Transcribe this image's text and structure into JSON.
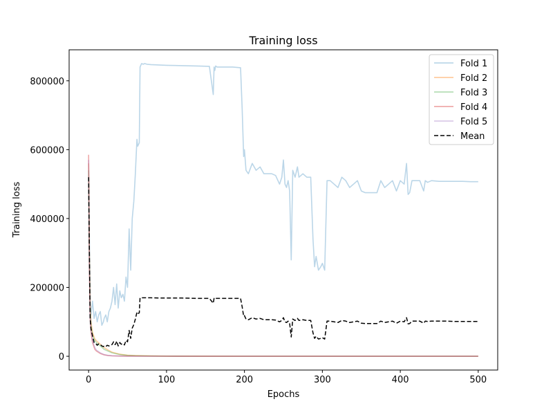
{
  "chart_data": {
    "type": "line",
    "title": "Training loss",
    "xlabel": "Epochs",
    "ylabel": "Training loss",
    "xlim": [
      -25,
      525
    ],
    "ylim": [
      -40000,
      890000
    ],
    "xticks": [
      0,
      100,
      200,
      300,
      400,
      500
    ],
    "yticks": [
      0,
      200000,
      400000,
      600000,
      800000
    ],
    "grid": false,
    "legend_position": "top-right",
    "series": [
      {
        "name": "Fold 1",
        "color": "#1f77b4",
        "alpha": 0.3,
        "dash": "solid",
        "x": [
          0,
          1,
          2,
          3,
          5,
          7,
          9,
          11,
          13,
          15,
          17,
          19,
          20,
          22,
          24,
          26,
          28,
          30,
          32,
          34,
          35,
          36,
          38,
          40,
          42,
          44,
          46,
          48,
          50,
          52,
          54,
          56,
          58,
          60,
          62,
          63,
          65,
          66,
          68,
          70,
          72,
          75,
          80,
          90,
          100,
          120,
          140,
          155,
          160,
          161,
          162,
          163,
          165,
          175,
          185,
          195,
          197,
          199,
          200,
          202,
          205,
          210,
          215,
          220,
          225,
          230,
          235,
          240,
          245,
          248,
          250,
          252,
          254,
          256,
          258,
          260,
          262,
          265,
          268,
          270,
          275,
          280,
          285,
          288,
          290,
          292,
          295,
          298,
          300,
          303,
          306,
          310,
          315,
          320,
          325,
          330,
          335,
          340,
          345,
          350,
          355,
          360,
          365,
          370,
          375,
          380,
          385,
          390,
          395,
          400,
          405,
          408,
          410,
          412,
          415,
          420,
          425,
          430,
          432,
          435,
          440,
          445,
          450,
          460,
          470,
          480,
          490,
          500
        ],
        "y": [
          520000,
          350000,
          150000,
          120000,
          160000,
          110000,
          130000,
          100000,
          120000,
          130000,
          90000,
          100000,
          110000,
          120000,
          100000,
          130000,
          140000,
          160000,
          200000,
          150000,
          180000,
          210000,
          140000,
          190000,
          170000,
          180000,
          160000,
          230000,
          200000,
          370000,
          250000,
          400000,
          450000,
          530000,
          630000,
          610000,
          620000,
          840000,
          850000,
          848000,
          850000,
          848000,
          847000,
          846000,
          845000,
          844000,
          843000,
          842000,
          760000,
          840000,
          830000,
          843000,
          840000,
          840000,
          840000,
          838000,
          720000,
          580000,
          600000,
          540000,
          530000,
          560000,
          540000,
          550000,
          530000,
          530000,
          530000,
          525000,
          500000,
          520000,
          570000,
          500000,
          490000,
          510000,
          480000,
          280000,
          540000,
          520000,
          550000,
          520000,
          530000,
          520000,
          520000,
          340000,
          260000,
          290000,
          250000,
          260000,
          270000,
          250000,
          510000,
          510000,
          500000,
          490000,
          520000,
          510000,
          490000,
          500000,
          510000,
          480000,
          475000,
          475000,
          475000,
          475000,
          510000,
          490000,
          500000,
          510000,
          480000,
          510000,
          500000,
          560000,
          470000,
          475000,
          510000,
          510000,
          510000,
          480000,
          510000,
          505000,
          510000,
          509000,
          508000,
          508000,
          508000,
          508000,
          507000,
          507000
        ]
      },
      {
        "name": "Fold 2",
        "color": "#ff7f0e",
        "alpha": 0.4,
        "dash": "solid",
        "x": [
          0,
          1,
          2,
          3,
          5,
          8,
          10,
          15,
          20,
          25,
          30,
          40,
          50,
          60,
          80,
          100,
          150,
          200,
          300,
          400,
          500
        ],
        "y": [
          560000,
          300000,
          150000,
          100000,
          70000,
          50000,
          45000,
          35000,
          25000,
          18000,
          12000,
          6000,
          3000,
          2000,
          1000,
          500,
          300,
          200,
          150,
          100,
          100
        ]
      },
      {
        "name": "Fold 3",
        "color": "#2ca02c",
        "alpha": 0.35,
        "dash": "solid",
        "x": [
          0,
          1,
          2,
          3,
          5,
          8,
          10,
          15,
          20,
          25,
          30,
          40,
          50,
          60,
          80,
          100,
          150,
          200,
          300,
          400,
          500
        ],
        "y": [
          540000,
          280000,
          140000,
          90000,
          60000,
          45000,
          40000,
          30000,
          20000,
          15000,
          10000,
          5000,
          2500,
          1500,
          800,
          400,
          250,
          150,
          100,
          100,
          100
        ]
      },
      {
        "name": "Fold 4",
        "color": "#d62728",
        "alpha": 0.4,
        "dash": "solid",
        "x": [
          0,
          1,
          2,
          3,
          5,
          8,
          10,
          15,
          20,
          25,
          30,
          40,
          50,
          60,
          80,
          100,
          150,
          200,
          300,
          400,
          500
        ],
        "y": [
          585000,
          250000,
          110000,
          70000,
          40000,
          20000,
          15000,
          8000,
          4000,
          2000,
          1200,
          600,
          300,
          200,
          100,
          80,
          60,
          50,
          50,
          50,
          50
        ]
      },
      {
        "name": "Fold 5",
        "color": "#9467bd",
        "alpha": 0.35,
        "dash": "solid",
        "x": [
          0,
          1,
          2,
          3,
          5,
          8,
          10,
          15,
          20,
          25,
          30,
          40,
          50,
          60,
          80,
          100,
          150,
          200,
          300,
          400,
          500
        ],
        "y": [
          570000,
          260000,
          120000,
          80000,
          45000,
          25000,
          18000,
          10000,
          5000,
          2500,
          1500,
          700,
          350,
          200,
          100,
          80,
          60,
          50,
          50,
          50,
          50
        ]
      },
      {
        "name": "Mean",
        "color": "#000000",
        "alpha": 1,
        "dash": "dashed",
        "x": [
          0,
          1,
          2,
          3,
          5,
          7,
          9,
          11,
          13,
          15,
          17,
          19,
          20,
          22,
          24,
          26,
          28,
          30,
          32,
          34,
          35,
          36,
          38,
          40,
          42,
          44,
          46,
          48,
          50,
          52,
          54,
          56,
          58,
          60,
          62,
          63,
          65,
          66,
          68,
          70,
          72,
          75,
          80,
          90,
          100,
          120,
          140,
          155,
          160,
          161,
          162,
          163,
          165,
          175,
          185,
          195,
          197,
          199,
          200,
          202,
          205,
          210,
          215,
          220,
          225,
          230,
          235,
          240,
          245,
          248,
          250,
          252,
          254,
          256,
          258,
          260,
          262,
          265,
          268,
          270,
          275,
          280,
          285,
          288,
          290,
          292,
          295,
          298,
          300,
          303,
          306,
          310,
          315,
          320,
          325,
          330,
          335,
          340,
          345,
          350,
          355,
          360,
          365,
          370,
          375,
          380,
          385,
          390,
          395,
          400,
          405,
          408,
          410,
          412,
          415,
          420,
          425,
          430,
          432,
          435,
          440,
          445,
          450,
          460,
          470,
          480,
          490,
          500
        ],
        "y": [
          520000,
          300000,
          110000,
          80000,
          60000,
          40000,
          38000,
          32000,
          36000,
          34000,
          30000,
          28000,
          30000,
          28000,
          32000,
          30000,
          32000,
          34000,
          42000,
          34000,
          37000,
          44000,
          30000,
          40000,
          35000,
          37000,
          33000,
          46000,
          42000,
          75000,
          52000,
          82000,
          92000,
          108000,
          128000,
          124000,
          126000,
          170000,
          170000,
          170000,
          170000,
          170000,
          170000,
          169000,
          169000,
          169000,
          168000,
          168000,
          154000,
          168000,
          166000,
          168000,
          168000,
          168000,
          168000,
          168000,
          144000,
          116000,
          118000,
          108000,
          106000,
          112000,
          108000,
          110000,
          106000,
          106000,
          106000,
          105000,
          100000,
          104000,
          112000,
          100000,
          98000,
          102000,
          96000,
          56000,
          108000,
          104000,
          110000,
          104000,
          106000,
          104000,
          104000,
          68000,
          52000,
          58000,
          50000,
          52000,
          54000,
          50000,
          102000,
          102000,
          100000,
          98000,
          104000,
          102000,
          98000,
          100000,
          102000,
          96000,
          95000,
          95000,
          95000,
          95000,
          102000,
          98000,
          100000,
          102000,
          96000,
          102000,
          100000,
          112000,
          94000,
          95000,
          102000,
          102000,
          102000,
          96000,
          102000,
          101000,
          102000,
          102000,
          102000,
          102000,
          101000,
          101000,
          101000,
          101000
        ]
      }
    ]
  }
}
